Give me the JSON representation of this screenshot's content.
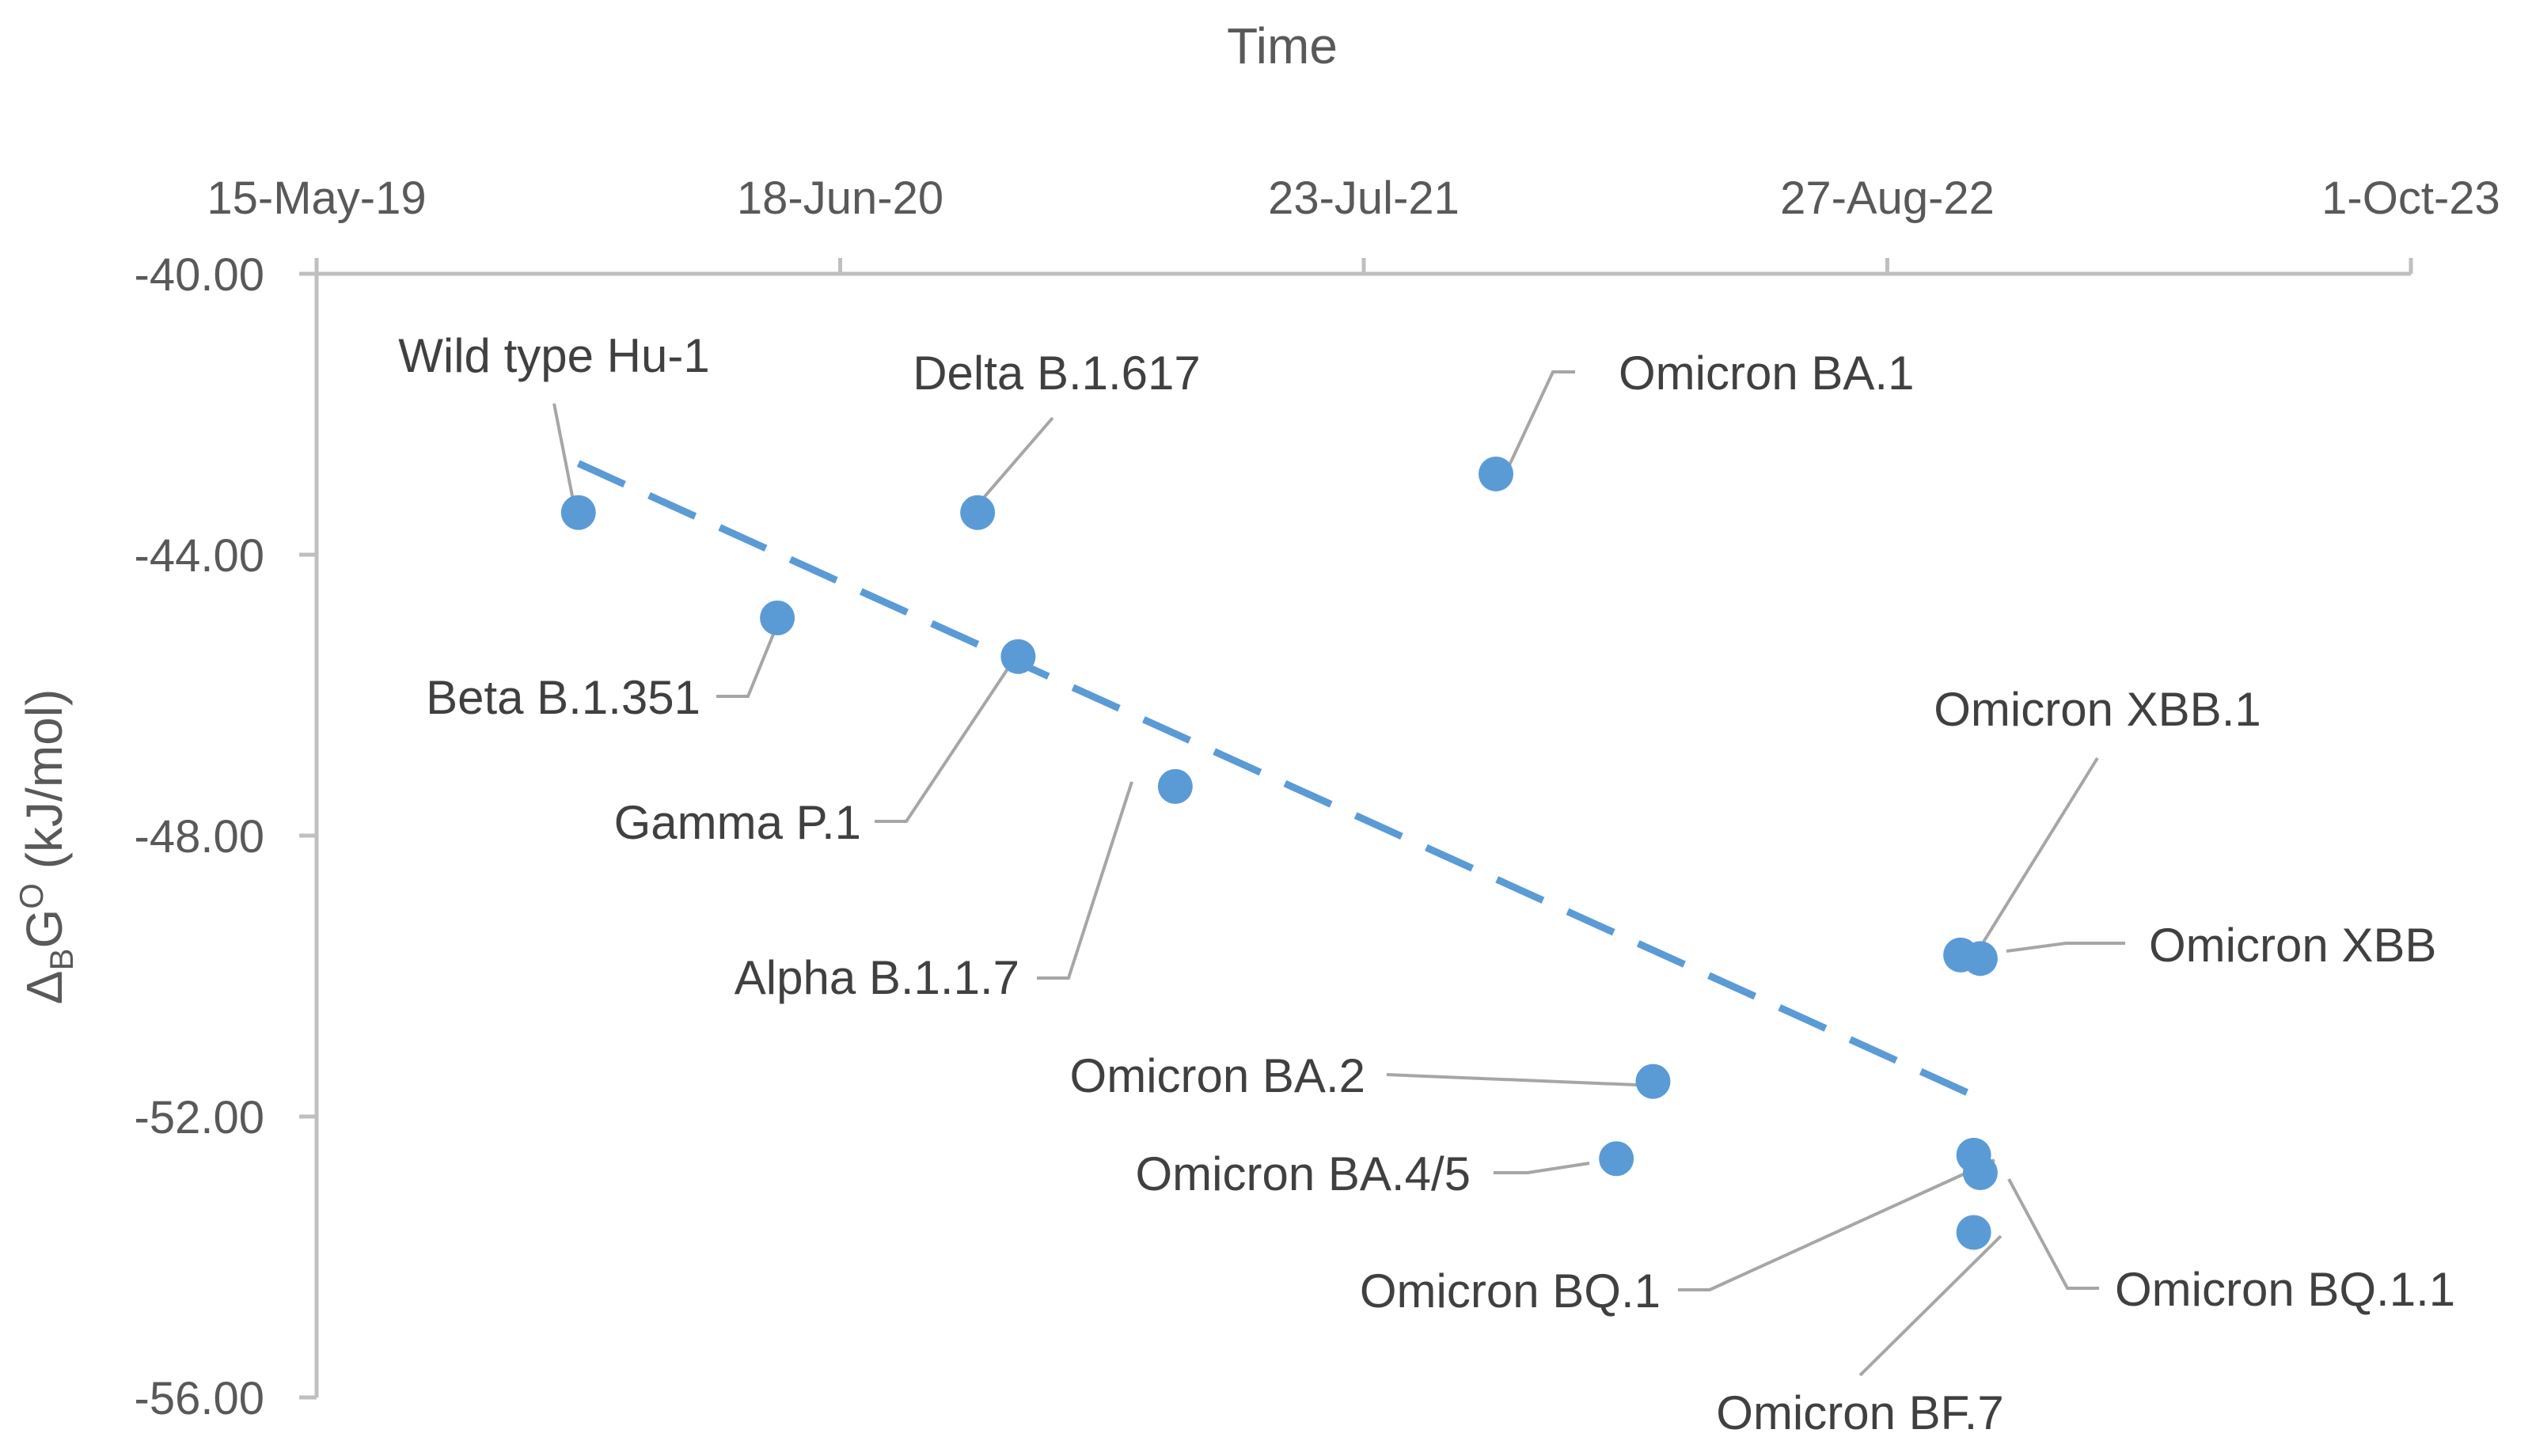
{
  "chart_data": {
    "type": "scatter",
    "title": "",
    "xlabel": "Time",
    "ylabel_main": "Δ",
    "ylabel_sub": "B",
    "ylabel_rest": "G",
    "ylabel_sup": "O",
    "ylabel_unit": " (kJ/mol)",
    "x_axis_position": "top",
    "x_ticks": [
      "15-May-19",
      "18-Jun-20",
      "23-Jul-21",
      "27-Aug-22",
      "1-Oct-23"
    ],
    "y_ticks": [
      "-40.00",
      "-44.00",
      "-48.00",
      "-52.00",
      "-56.00"
    ],
    "xlim": [
      "2019-05-15",
      "2023-10-01"
    ],
    "ylim": [
      -56,
      -40
    ],
    "y_reversed": true,
    "grid": false,
    "legend": "none",
    "series_color": "#5b9bd5",
    "points": [
      {
        "label": "Wild type Hu-1",
        "x": "2019-12-01",
        "y": -43.4
      },
      {
        "label": "Delta B.1.617",
        "x": "2020-10-01",
        "y": -43.4
      },
      {
        "label": "Omicron BA.1",
        "x": "2021-11-01",
        "y": -42.85
      },
      {
        "label": "Beta B.1.351",
        "x": "2020-05-01",
        "y": -44.9
      },
      {
        "label": "Gamma P.1",
        "x": "2020-11-01",
        "y": -45.45
      },
      {
        "label": "Alpha B.1.1.7",
        "x": "2021-03-01",
        "y": -47.3
      },
      {
        "label": "Omicron XBB.1",
        "x": "2022-10-22",
        "y": -49.7
      },
      {
        "label": "Omicron XBB",
        "x": "2022-11-06",
        "y": -49.75
      },
      {
        "label": "Omicron BA.2",
        "x": "2022-03-01",
        "y": -51.5
      },
      {
        "label": "Omicron BA.4/5",
        "x": "2022-02-01",
        "y": -52.6
      },
      {
        "label": "Omicron BQ.1",
        "x": "2022-11-01",
        "y": -52.55
      },
      {
        "label": "Omicron BQ.1.1",
        "x": "2022-11-06",
        "y": -52.8
      },
      {
        "label": "Omicron BF.7",
        "x": "2022-11-01",
        "y": -53.65
      }
    ],
    "trendline": {
      "style": "dashed",
      "x": [
        "2019-12-01",
        "2022-11-01"
      ],
      "y": [
        -42.7,
        -51.7
      ]
    }
  }
}
